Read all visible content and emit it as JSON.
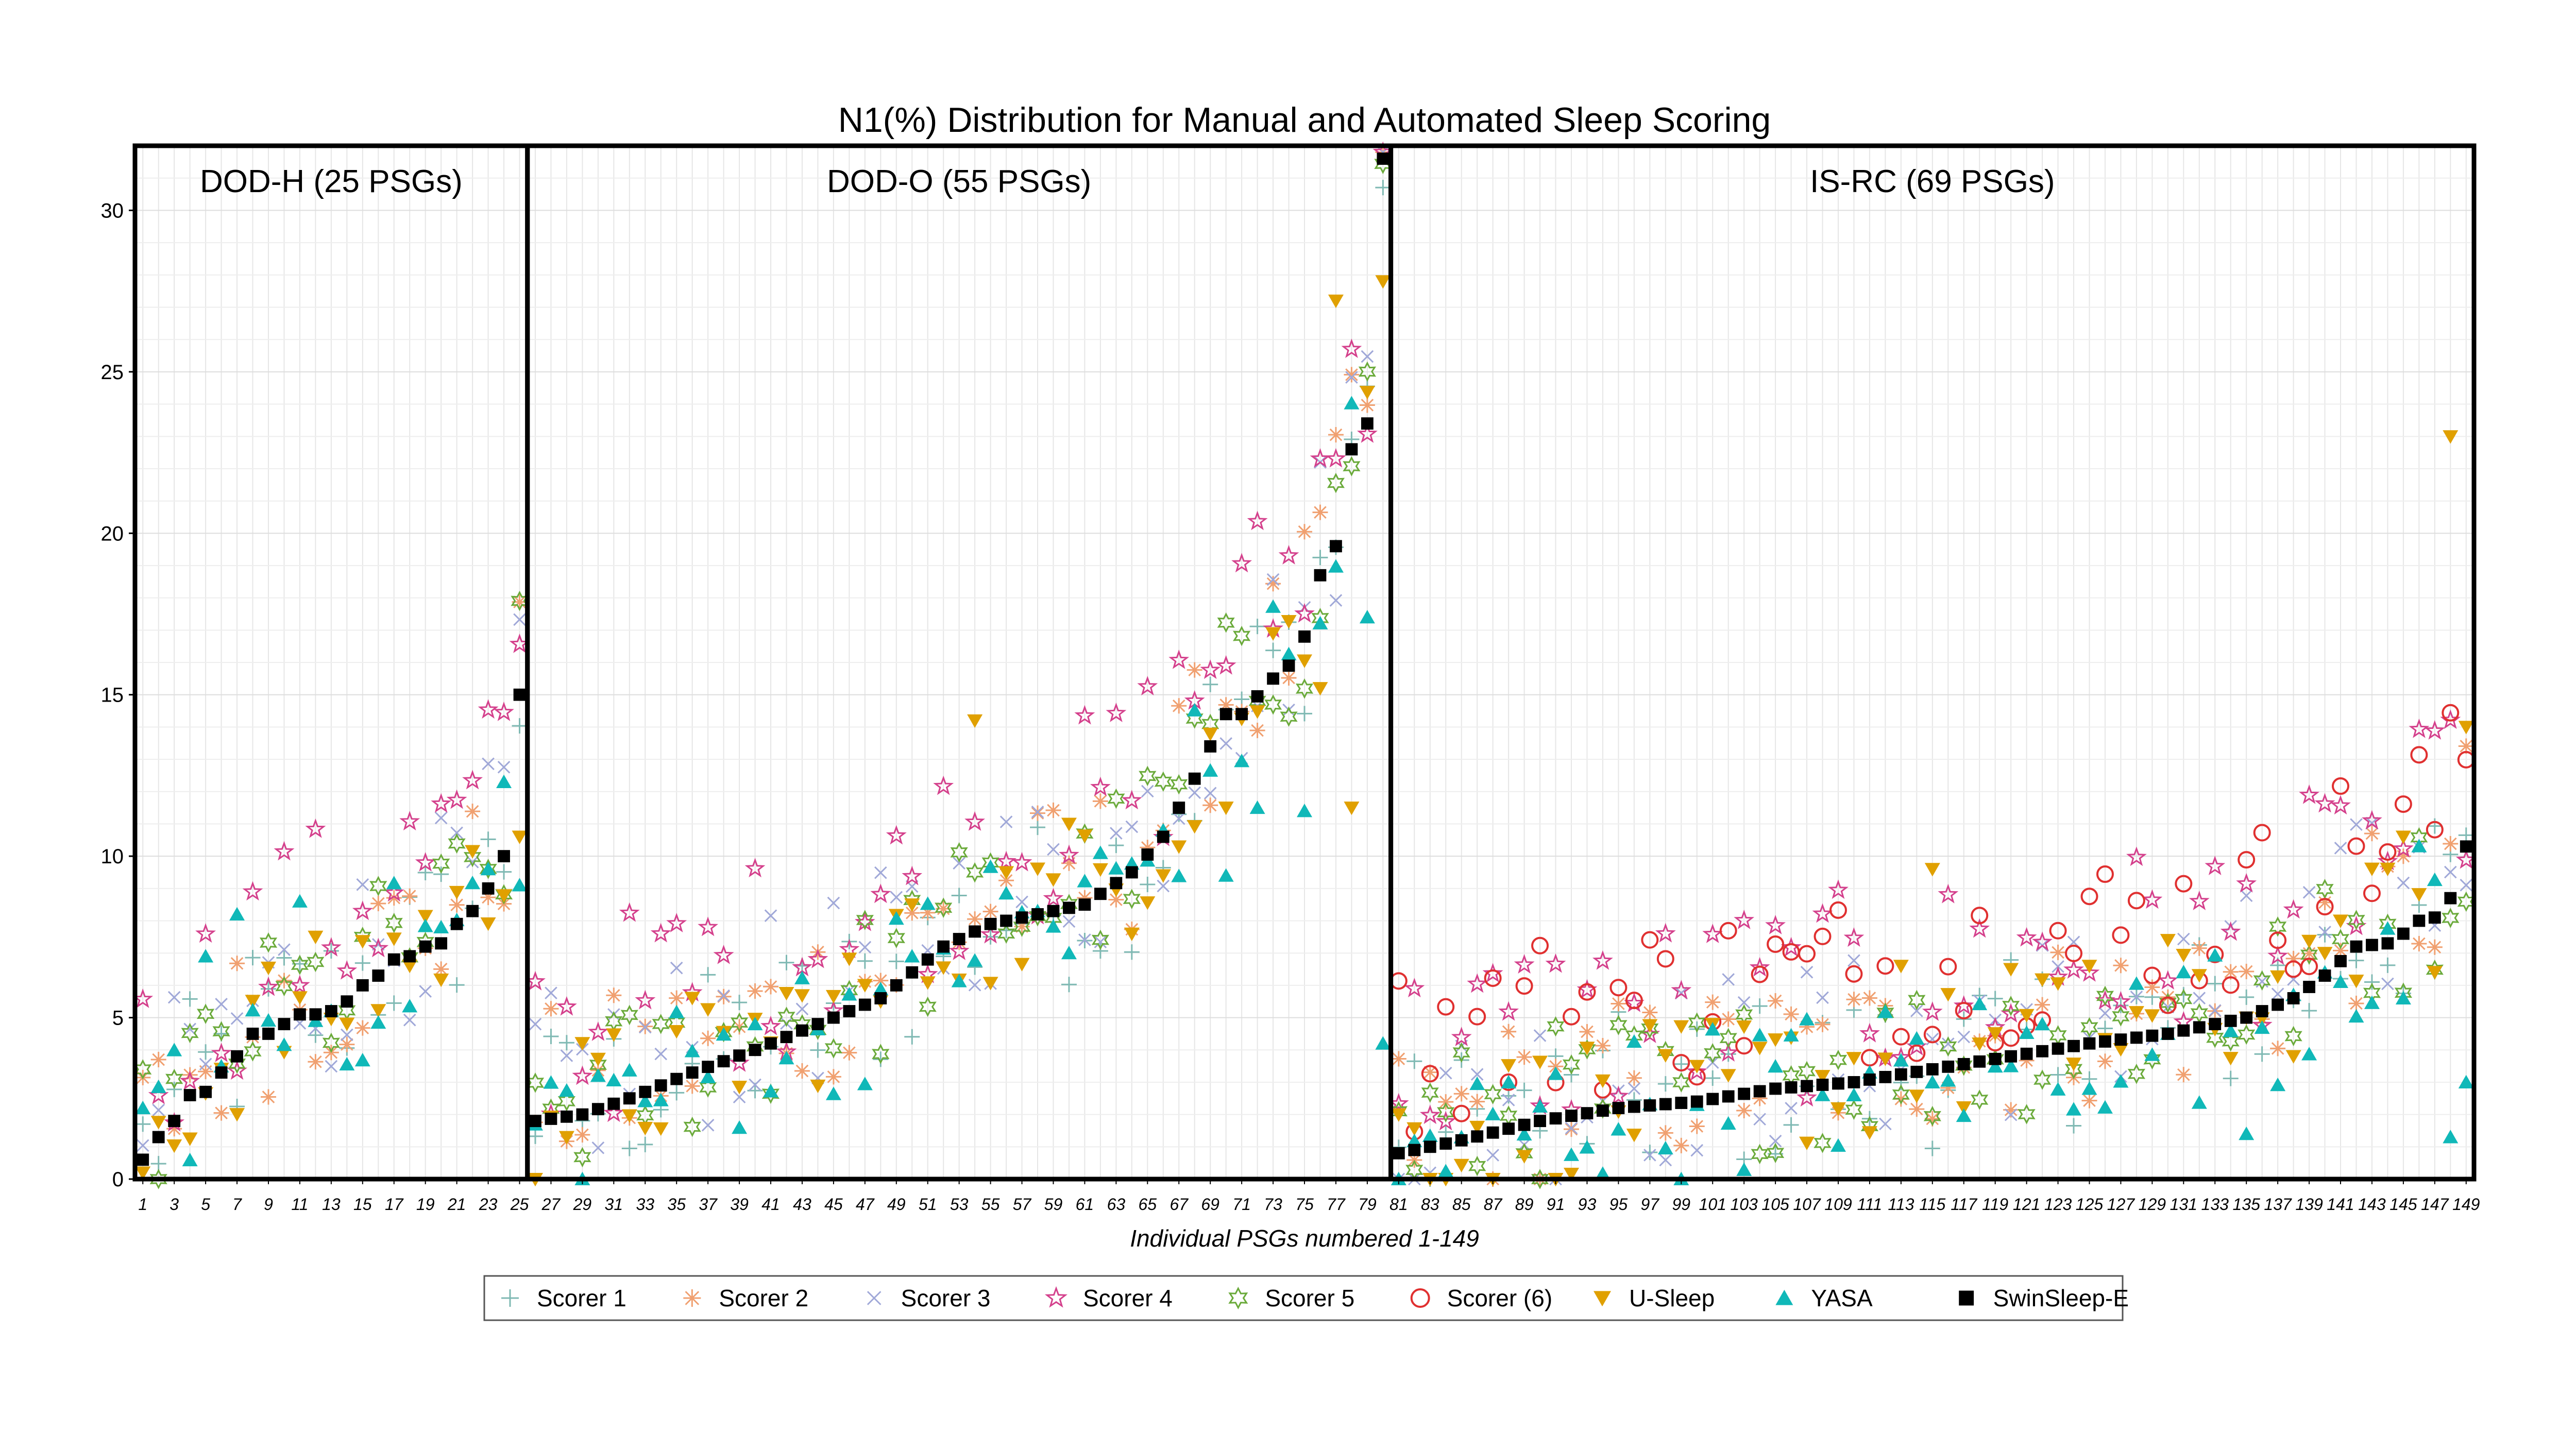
{
  "chart_data": {
    "type": "scatter",
    "title": "N1(%) Distribution for Manual and Automated Sleep Scoring",
    "xlabel": "Individual PSGs numbered 1-149",
    "ylabel": "",
    "xlim": [
      0.5,
      149.5
    ],
    "ylim": [
      0,
      32
    ],
    "yticks": [
      0,
      5,
      10,
      15,
      20,
      25,
      30
    ],
    "grid": true,
    "legend_position": "bottom",
    "panels": [
      {
        "label": "DOD-H (25 PSGs)",
        "start": 1,
        "end": 25
      },
      {
        "label": "DOD-O (55 PSGs)",
        "start": 26,
        "end": 80
      },
      {
        "label": "IS-RC (69 PSGs)",
        "start": 81,
        "end": 149
      }
    ],
    "series": [
      {
        "name": "Scorer 1",
        "marker": "plus",
        "color": "#7fb9b3"
      },
      {
        "name": "Scorer 2",
        "marker": "asterisk",
        "color": "#f0a070"
      },
      {
        "name": "Scorer 3",
        "marker": "cross",
        "color": "#a0a8d8"
      },
      {
        "name": "Scorer 4",
        "marker": "star",
        "color": "#d4408c"
      },
      {
        "name": "Scorer 5",
        "marker": "hexagram",
        "color": "#6aaa3a"
      },
      {
        "name": "Scorer (6)",
        "marker": "circle",
        "color": "#e03030"
      },
      {
        "name": "U-Sleep",
        "marker": "triangle-down",
        "color": "#e0a000"
      },
      {
        "name": "YASA",
        "marker": "triangle-up",
        "color": "#10b8b8"
      },
      {
        "name": "SwinSleep-E",
        "marker": "square",
        "color": "#000000"
      }
    ],
    "anchors": {
      "SwinSleep-E": [
        [
          1,
          0.6
        ],
        [
          2,
          1.3
        ],
        [
          3,
          1.8
        ],
        [
          4,
          2.6
        ],
        [
          5,
          2.7
        ],
        [
          6,
          3.3
        ],
        [
          7,
          3.8
        ],
        [
          8,
          4.5
        ],
        [
          9,
          4.5
        ],
        [
          10,
          4.8
        ],
        [
          11,
          5.1
        ],
        [
          12,
          5.1
        ],
        [
          13,
          5.2
        ],
        [
          14,
          5.5
        ],
        [
          15,
          6.0
        ],
        [
          16,
          6.3
        ],
        [
          17,
          6.8
        ],
        [
          18,
          6.9
        ],
        [
          19,
          7.2
        ],
        [
          20,
          7.3
        ],
        [
          21,
          7.9
        ],
        [
          22,
          8.3
        ],
        [
          23,
          9.0
        ],
        [
          24,
          10.0
        ],
        [
          25,
          15.0
        ],
        [
          26,
          1.8
        ],
        [
          29,
          2.0
        ],
        [
          32,
          2.5
        ],
        [
          36,
          3.3
        ],
        [
          40,
          4.0
        ],
        [
          44,
          4.8
        ],
        [
          48,
          5.6
        ],
        [
          52,
          7.2
        ],
        [
          55,
          7.9
        ],
        [
          58,
          8.2
        ],
        [
          61,
          8.5
        ],
        [
          64,
          9.5
        ],
        [
          66,
          10.6
        ],
        [
          68,
          12.4
        ],
        [
          70,
          14.4
        ],
        [
          71,
          14.4
        ],
        [
          73,
          15.5
        ],
        [
          74,
          15.9
        ],
        [
          75,
          16.8
        ],
        [
          76,
          18.7
        ],
        [
          77,
          19.6
        ],
        [
          78,
          22.6
        ],
        [
          79,
          23.4
        ],
        [
          80,
          31.6
        ],
        [
          81,
          0.8
        ],
        [
          85,
          1.2
        ],
        [
          90,
          1.8
        ],
        [
          95,
          2.2
        ],
        [
          100,
          2.4
        ],
        [
          105,
          2.8
        ],
        [
          110,
          3.0
        ],
        [
          115,
          3.4
        ],
        [
          120,
          3.8
        ],
        [
          125,
          4.2
        ],
        [
          130,
          4.5
        ],
        [
          135,
          5.0
        ],
        [
          138,
          5.6
        ],
        [
          140,
          6.3
        ],
        [
          142,
          7.2
        ],
        [
          144,
          7.3
        ],
        [
          145,
          7.6
        ],
        [
          146,
          8.0
        ],
        [
          147,
          8.1
        ],
        [
          148,
          8.7
        ],
        [
          149,
          10.3
        ]
      ],
      "U-Sleep": [
        [
          1,
          0.2
        ],
        [
          25,
          10.6
        ],
        [
          50,
          8.5
        ],
        [
          54,
          14.2
        ],
        [
          60,
          11.0
        ],
        [
          70,
          11.5
        ],
        [
          73,
          16.9
        ],
        [
          76,
          15.2
        ],
        [
          77,
          27.2
        ],
        [
          78,
          11.5
        ],
        [
          80,
          27.8
        ],
        [
          81,
          2.0
        ],
        [
          100,
          3.5
        ],
        [
          113,
          6.6
        ],
        [
          115,
          9.6
        ],
        [
          120,
          6.5
        ],
        [
          125,
          6.6
        ],
        [
          130,
          7.4
        ],
        [
          135,
          5.0
        ],
        [
          140,
          7.0
        ],
        [
          141,
          8.0
        ],
        [
          145,
          10.6
        ],
        [
          148,
          23.0
        ],
        [
          149,
          14.0
        ]
      ],
      "YASA": [
        [
          1,
          2.2
        ],
        [
          5,
          6.9
        ],
        [
          7,
          8.2
        ],
        [
          11,
          8.6
        ],
        [
          20,
          7.8
        ],
        [
          24,
          12.3
        ],
        [
          25,
          9.1
        ],
        [
          30,
          3.2
        ],
        [
          40,
          4.8
        ],
        [
          50,
          6.9
        ],
        [
          60,
          7.0
        ],
        [
          66,
          10.8
        ],
        [
          70,
          9.4
        ],
        [
          72,
          11.5
        ],
        [
          75,
          11.4
        ],
        [
          79,
          17.4
        ],
        [
          80,
          4.2
        ],
        [
          81,
          0.0
        ],
        [
          100,
          2.3
        ],
        [
          110,
          2.6
        ],
        [
          115,
          3.0
        ],
        [
          120,
          3.5
        ],
        [
          125,
          2.8
        ],
        [
          130,
          4.5
        ],
        [
          135,
          1.4
        ],
        [
          140,
          6.4
        ],
        [
          145,
          5.6
        ],
        [
          148,
          1.3
        ],
        [
          149,
          3.0
        ]
      ]
    }
  },
  "legend": {
    "items": [
      {
        "label": "Scorer 1",
        "marker": "plus",
        "color": "#7fb9b3"
      },
      {
        "label": "Scorer 2",
        "marker": "asterisk",
        "color": "#f0a070"
      },
      {
        "label": "Scorer 3",
        "marker": "cross",
        "color": "#a0a8d8"
      },
      {
        "label": "Scorer 4",
        "marker": "star",
        "color": "#d4408c"
      },
      {
        "label": "Scorer 5",
        "marker": "hexagram",
        "color": "#6aaa3a"
      },
      {
        "label": "Scorer (6)",
        "marker": "circle",
        "color": "#e03030"
      },
      {
        "label": "U-Sleep",
        "marker": "triangle-down",
        "color": "#e0a000"
      },
      {
        "label": "YASA",
        "marker": "triangle-up",
        "color": "#10b8b8"
      },
      {
        "label": "SwinSleep-E",
        "marker": "square",
        "color": "#000000"
      }
    ]
  }
}
